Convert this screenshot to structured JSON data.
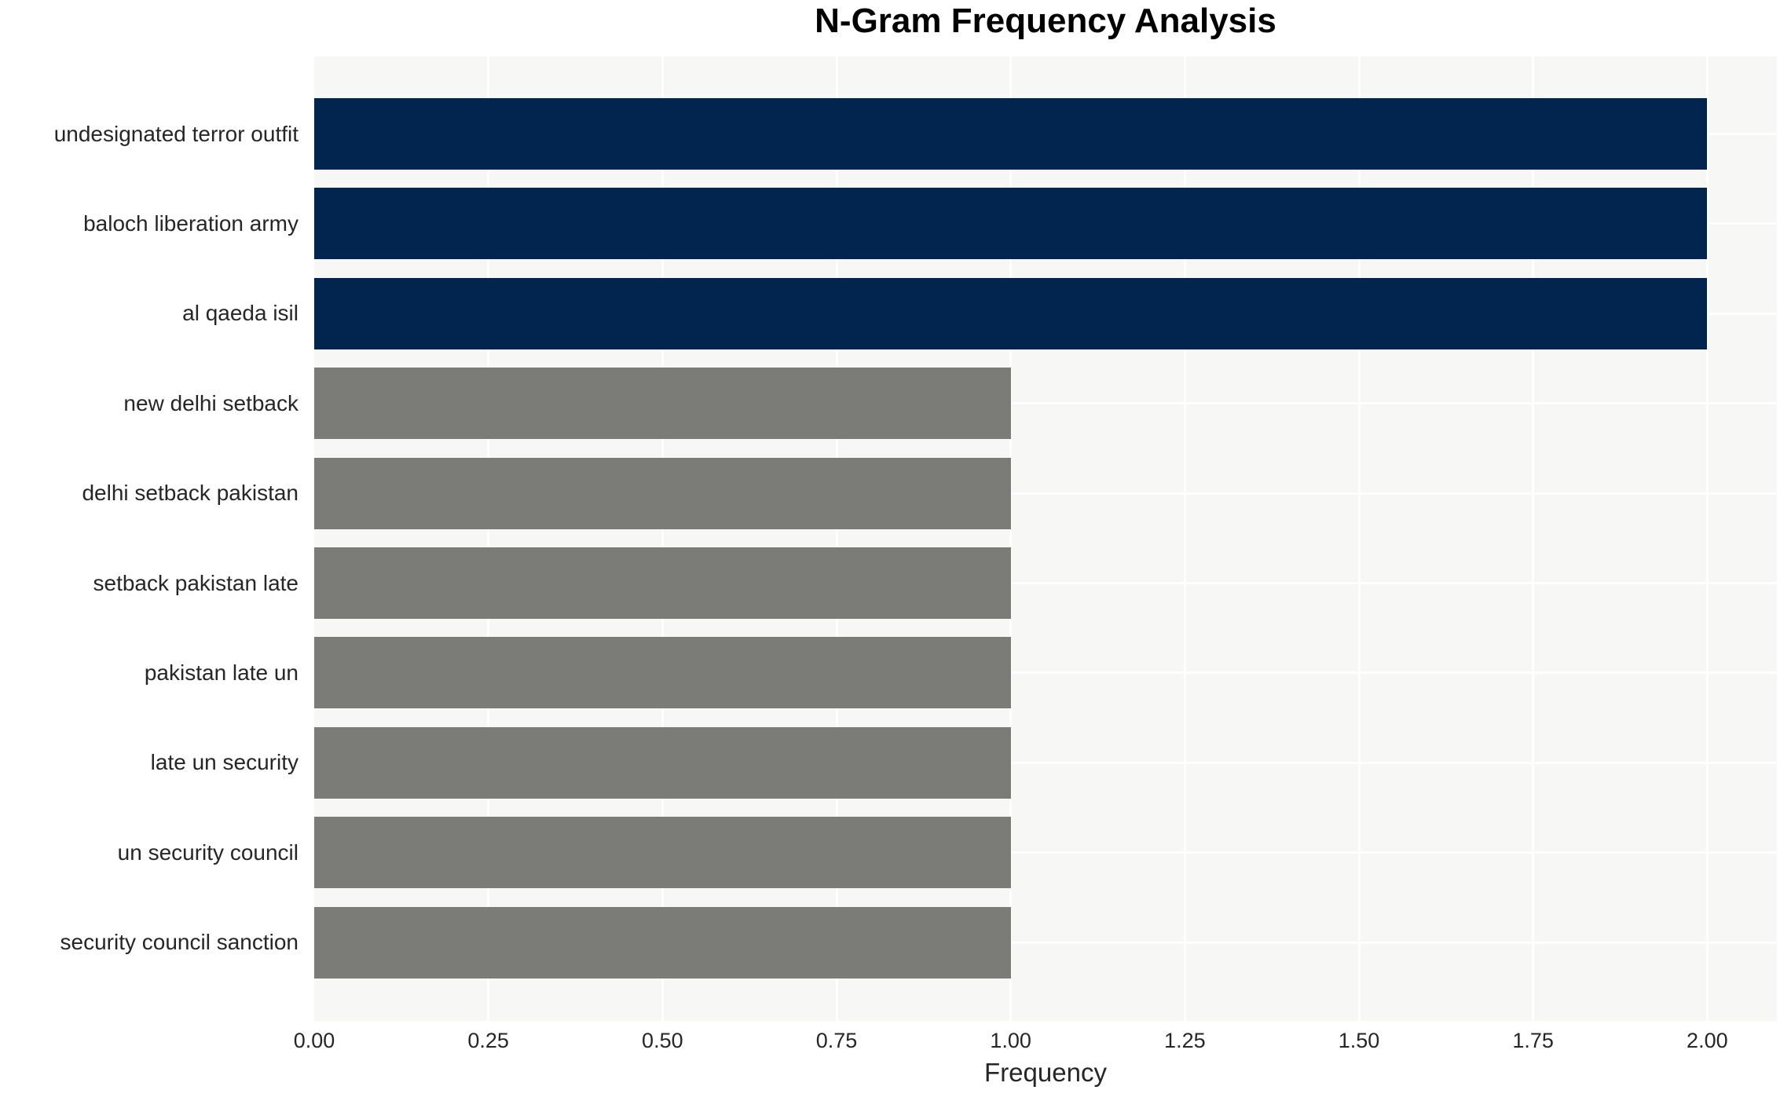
{
  "chart_data": {
    "type": "bar",
    "orientation": "horizontal",
    "title": "N-Gram Frequency Analysis",
    "xlabel": "Frequency",
    "ylabel": "",
    "categories": [
      "undesignated terror outfit",
      "baloch liberation army",
      "al qaeda isil",
      "new delhi setback",
      "delhi setback pakistan",
      "setback pakistan late",
      "pakistan late un",
      "late un security",
      "un security council",
      "security council sanction"
    ],
    "values": [
      2,
      2,
      2,
      1,
      1,
      1,
      1,
      1,
      1,
      1
    ],
    "bar_colors": [
      "#02254f",
      "#02254f",
      "#02254f",
      "#7b7b77",
      "#7b7b77",
      "#7b7b77",
      "#7b7b77",
      "#7b7b77",
      "#7b7b77",
      "#7b7b77"
    ],
    "xlim": [
      0,
      2.1
    ],
    "xticks": [
      {
        "value": 0,
        "label": "0.00"
      },
      {
        "value": 0.25,
        "label": "0.25"
      },
      {
        "value": 0.5,
        "label": "0.50"
      },
      {
        "value": 0.75,
        "label": "0.75"
      },
      {
        "value": 1,
        "label": "1.00"
      },
      {
        "value": 1.25,
        "label": "1.25"
      },
      {
        "value": 1.5,
        "label": "1.50"
      },
      {
        "value": 1.75,
        "label": "1.75"
      },
      {
        "value": 2,
        "label": "2.00"
      }
    ],
    "grid": true,
    "legend_position": "none",
    "colors": {
      "high_frequency_bar": "#02254f",
      "low_frequency_bar": "#7b7b77",
      "plot_background": "#f7f7f6",
      "grid_line": "#ffffff",
      "page_background": "#ffffff",
      "text": "#262626",
      "title_text": "#000000"
    }
  }
}
